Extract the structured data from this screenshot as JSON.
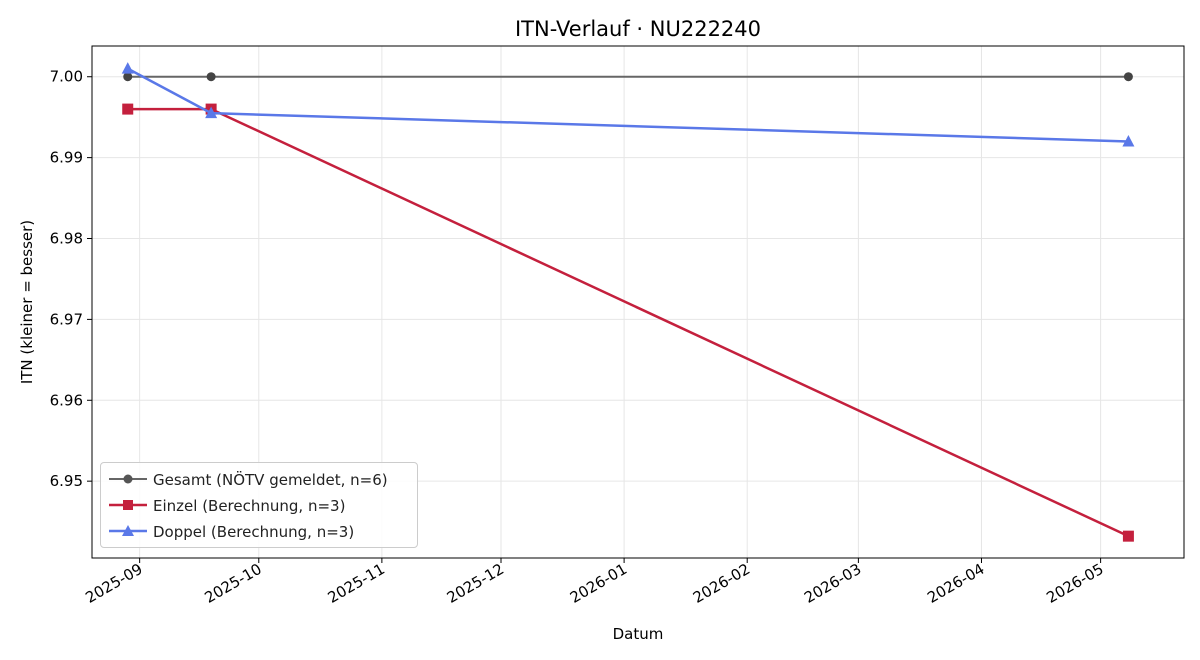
{
  "chart_data": {
    "type": "line",
    "title": "ITN-Verlauf · NU222240",
    "xlabel": "Datum",
    "ylabel": "ITN  (kleiner = besser)",
    "x_ticks": [
      "2025-09-01",
      "2025-10-01",
      "2025-11-01",
      "2025-12-01",
      "2026-01-01",
      "2026-02-01",
      "2026-03-01",
      "2026-04-01",
      "2026-05-01"
    ],
    "x_tick_labels": [
      "2025-09",
      "2025-10",
      "2025-11",
      "2025-12",
      "2026-01",
      "2026-02",
      "2026-03",
      "2026-04",
      "2026-05"
    ],
    "xlim": [
      "2025-08-20",
      "2026-05-22"
    ],
    "y_ticks": [
      6.95,
      6.96,
      6.97,
      6.98,
      6.99,
      7.0
    ],
    "y_tick_labels": [
      "6.95",
      "6.96",
      "6.97",
      "6.98",
      "6.99",
      "7.00"
    ],
    "ylim": [
      6.9405,
      7.0038
    ],
    "grid": true,
    "legend_position": "lower-left",
    "series": [
      {
        "name": "Gesamt (NÖTV gemeldet, n=6)",
        "color": "#666666",
        "marker": "circle",
        "x": [
          "2025-08-29",
          "2025-09-19",
          "2026-05-08"
        ],
        "y": [
          7.0,
          7.0,
          7.0
        ]
      },
      {
        "name": "Einzel (Berechnung, n=3)",
        "color": "#c4203d",
        "marker": "square",
        "x": [
          "2025-08-29",
          "2025-09-19",
          "2026-05-08"
        ],
        "y": [
          6.996,
          6.996,
          6.9432
        ]
      },
      {
        "name": "Doppel (Berechnung, n=3)",
        "color": "#5a78e8",
        "marker": "triangle",
        "x": [
          "2025-08-29",
          "2025-09-19",
          "2026-05-08"
        ],
        "y": [
          7.001,
          6.9955,
          6.992
        ]
      }
    ]
  }
}
